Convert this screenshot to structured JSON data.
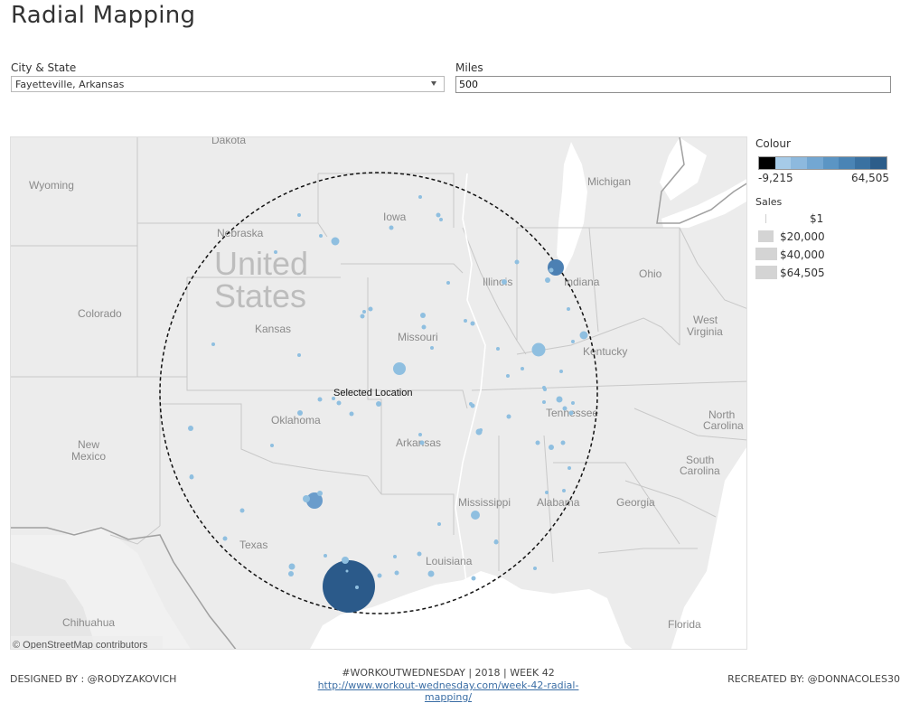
{
  "title": "Radial Mapping",
  "filters": {
    "city_state_label": "City & State",
    "city_state_value": "Fayetteville, Arkansas",
    "miles_label": "Miles",
    "miles_value": "500"
  },
  "map": {
    "selected_location_label": "Selected Location",
    "attribution": "© OpenStreetMap contributors",
    "country_label_1": "United",
    "country_label_2": "States",
    "states": [
      "Dakota",
      "Wyoming",
      "Nebraska",
      "Iowa",
      "Michigan",
      "Colorado",
      "Kansas",
      "Illinois",
      "Indiana",
      "Ohio",
      "Missouri",
      "Kentucky",
      "West",
      "Virginia",
      "Oklahoma",
      "Arkansas",
      "Tennessee",
      "North",
      "Carolina",
      "New",
      "Mexico",
      "South",
      "Carolina",
      "Mississippi",
      "Alabama",
      "Georgia",
      "Texas",
      "Louisiana",
      "Chihuahua",
      "Florida"
    ],
    "colors": {
      "water": "#ffffff",
      "land": "#ececec",
      "circle": "#000000",
      "mark_light": "#8fbfe0",
      "mark_dark": "#2a5a8a"
    }
  },
  "legend": {
    "colour_title": "Colour",
    "colour_min": "-9,215",
    "colour_max": "64,505",
    "colour_ramp": [
      "#000000",
      "#a6cbe8",
      "#8db9de",
      "#73a7d2",
      "#5b95c4",
      "#4a84b5",
      "#3a71a1",
      "#2c5d8a"
    ],
    "sales_title": "Sales",
    "sales_items": [
      {
        "label": "$1",
        "size": "tiny"
      },
      {
        "label": "$20,000",
        "size": "small"
      },
      {
        "label": "$40,000",
        "size": "medium"
      },
      {
        "label": "$64,505",
        "size": "large"
      }
    ]
  },
  "footer": {
    "designed_by": "DESIGNED BY : @RODYZAKOVICH",
    "center_line": "#WORKOUTWEDNESDAY  |  2018  |  WEEK 42",
    "link": "http://www.workout-wednesday.com/week-42-radial-mapping/",
    "recreated_by": "RECREATED BY: @DONNACOLES30"
  }
}
